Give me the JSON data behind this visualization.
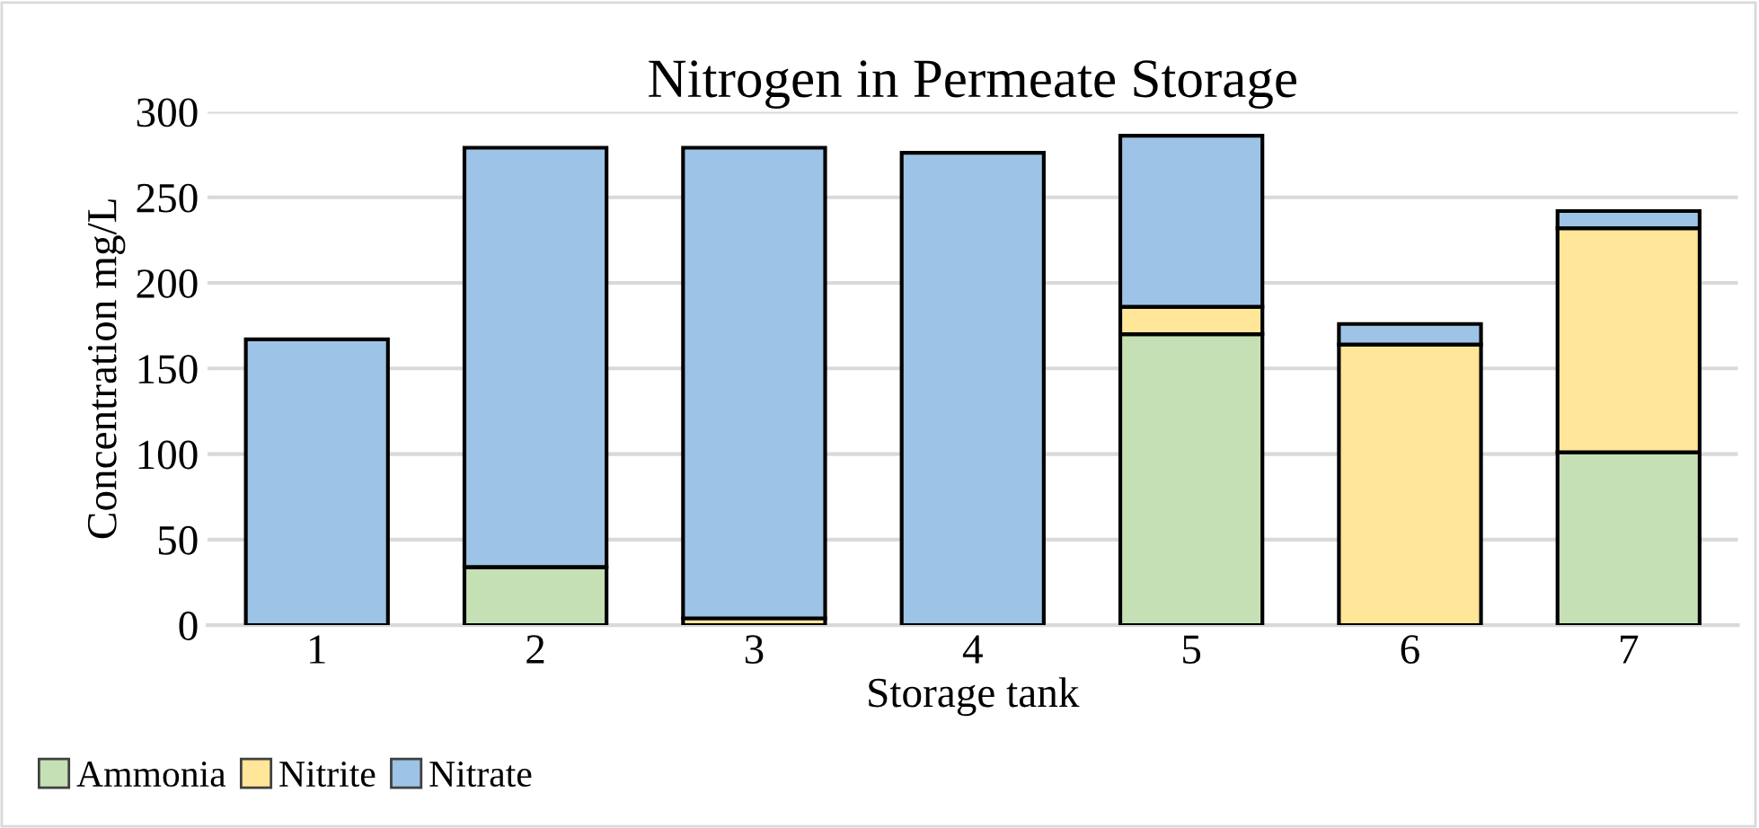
{
  "chart_data": {
    "type": "bar",
    "title": "Nitrogen in Permeate Storage",
    "xlabel": "Storage tank",
    "ylabel": "Concentration mg/L",
    "categories": [
      "1",
      "2",
      "3",
      "4",
      "5",
      "6",
      "7"
    ],
    "stacked": true,
    "series": [
      {
        "name": "Ammonia",
        "color": "#c5e0b4",
        "values": [
          0,
          34,
          0,
          null,
          170,
          null,
          101
        ]
      },
      {
        "name": "Nitrite",
        "color": "#ffe699",
        "values": [
          0,
          0,
          4,
          0,
          16,
          164,
          131
        ]
      },
      {
        "name": "Nitrate",
        "color": "#9dc3e6",
        "values": [
          167,
          245,
          275,
          276,
          100,
          12,
          10
        ]
      }
    ],
    "ylim": [
      0,
      300
    ],
    "yticks": [
      0,
      50,
      100,
      150,
      200,
      250,
      300
    ],
    "grid": "y",
    "legend": "bottom left"
  }
}
